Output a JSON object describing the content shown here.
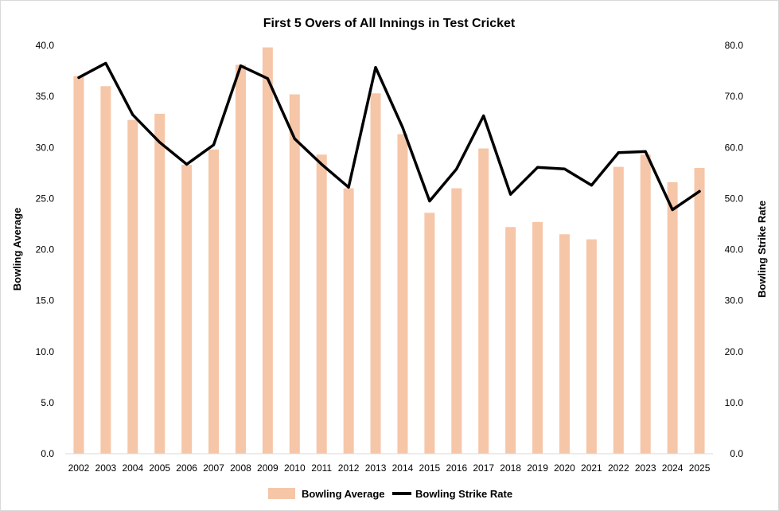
{
  "chart_data": {
    "type": "bar",
    "title": "First 5 Overs of All Innings in Test Cricket",
    "categories": [
      "2002",
      "2003",
      "2004",
      "2005",
      "2006",
      "2007",
      "2008",
      "2009",
      "2010",
      "2011",
      "2012",
      "2013",
      "2014",
      "2015",
      "2016",
      "2017",
      "2018",
      "2019",
      "2020",
      "2021",
      "2022",
      "2023",
      "2024",
      "2025"
    ],
    "series": [
      {
        "name": "Bowling Average",
        "type": "bar",
        "axis": "left",
        "color": "#F6C6A8",
        "values": [
          37.0,
          36.0,
          32.7,
          33.3,
          28.3,
          29.8,
          38.1,
          39.8,
          35.2,
          29.3,
          26.0,
          35.3,
          31.3,
          23.6,
          26.0,
          29.9,
          22.2,
          22.7,
          21.5,
          21.0,
          28.1,
          29.3,
          26.6,
          28.0
        ]
      },
      {
        "name": "Bowling Strike Rate",
        "type": "line",
        "axis": "right",
        "color": "#000000",
        "values": [
          73.7,
          76.5,
          66.4,
          61.0,
          56.7,
          60.5,
          76.0,
          73.5,
          61.7,
          56.7,
          52.2,
          75.7,
          63.9,
          49.5,
          55.8,
          66.2,
          50.8,
          56.1,
          55.8,
          52.6,
          59.0,
          59.2,
          47.8,
          51.4
        ]
      }
    ],
    "y_left": {
      "label": "Bowling Average",
      "range": [
        0,
        40
      ],
      "ticks": [
        "0.0",
        "5.0",
        "10.0",
        "15.0",
        "20.0",
        "25.0",
        "30.0",
        "35.0",
        "40.0"
      ]
    },
    "y_right": {
      "label": "Bowling Strike Rate",
      "range": [
        0,
        80
      ],
      "ticks": [
        "0.0",
        "10.0",
        "20.0",
        "30.0",
        "40.0",
        "50.0",
        "60.0",
        "70.0",
        "80.0"
      ]
    },
    "grid": false,
    "legend": "bottom"
  }
}
